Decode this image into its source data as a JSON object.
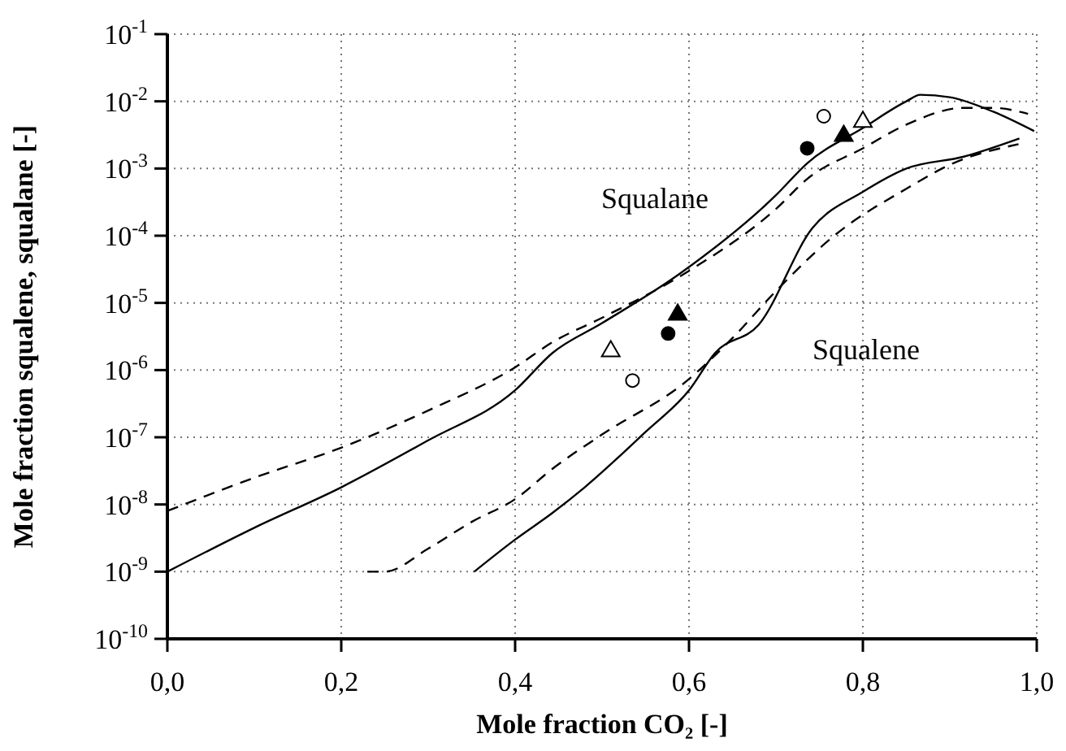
{
  "chart_data": {
    "type": "line",
    "xlabel": "Mole fraction CO₂ [-]",
    "ylabel": "Mole fraction squalene, squalane [-]",
    "log": "y",
    "grid": true,
    "xlim": [
      0,
      1
    ],
    "xticks": [
      {
        "value": 0,
        "label": "0,0"
      },
      {
        "value": 0.2,
        "label": "0,2"
      },
      {
        "value": 0.4,
        "label": "0,4"
      },
      {
        "value": 0.6,
        "label": "0,6"
      },
      {
        "value": 0.8,
        "label": "0,8"
      },
      {
        "value": 1,
        "label": "1,0"
      }
    ],
    "ylim": [
      1e-10,
      0.1
    ],
    "yticks": [
      {
        "value": 1e-10,
        "label": "10$^{-10}$"
      },
      {
        "value": 1e-09,
        "label": "10$^{-9}$"
      },
      {
        "value": 1e-08,
        "label": "10$^{-8}$"
      },
      {
        "value": 1e-07,
        "label": "10$^{-7}$"
      },
      {
        "value": 1e-06,
        "label": "10$^{-6}$"
      },
      {
        "value": 1e-05,
        "label": "10$^{-5}$"
      },
      {
        "value": 0.0001,
        "label": "10$^{-4}$"
      },
      {
        "value": 0.001,
        "label": "10$^{-3}$"
      },
      {
        "value": 0.01,
        "label": "10$^{-2}$"
      },
      {
        "value": 0.1,
        "label": "10$^{-1}$"
      }
    ],
    "annotations": [
      "Squalane",
      "Squalene"
    ],
    "series": [
      {
        "line_style": "solid",
        "color": "#000000",
        "x": [
          0,
          0.1,
          0.2,
          0.3,
          0.4,
          0.443,
          0.5,
          0.589,
          0.7,
          0.736,
          0.8,
          0.85,
          0.866,
          0.9,
          0.95,
          0.997
        ],
        "values": [
          1e-09,
          4.5e-09,
          1.8e-08,
          9e-08,
          5e-07,
          1.8e-06,
          5e-06,
          2.7e-05,
          0.0004,
          0.0012,
          0.004,
          0.01,
          0.0125,
          0.0115,
          0.007,
          0.0036
        ]
      },
      {
        "line_style": "dashed",
        "color": "#000000",
        "x": [
          0,
          0.1,
          0.2,
          0.3,
          0.4,
          0.443,
          0.5,
          0.6,
          0.7,
          0.736,
          0.8,
          0.85,
          0.916,
          0.95,
          0.99
        ],
        "values": [
          8e-09,
          2.5e-08,
          7e-08,
          2.5e-07,
          1.1e-06,
          2.6e-06,
          6e-06,
          3e-05,
          0.00025,
          0.0007,
          0.002,
          0.0045,
          0.008,
          0.008,
          0.0065
        ]
      },
      {
        "line_style": "solid",
        "color": "#000000",
        "x": [
          0.353,
          0.4,
          0.443,
          0.48,
          0.55,
          0.6,
          0.63,
          0.68,
          0.742,
          0.8,
          0.85,
          0.916,
          0.98
        ],
        "values": [
          1e-09,
          3e-09,
          7.5e-09,
          1.8e-08,
          1.2e-07,
          5e-07,
          1.8e-06,
          4.7e-06,
          0.00013,
          0.00045,
          0.001,
          0.0015,
          0.0028
        ]
      },
      {
        "line_style": "dashed",
        "color": "#000000",
        "x": [
          0.23,
          0.25,
          0.3,
          0.35,
          0.4,
          0.443,
          0.5,
          0.598,
          0.65,
          0.7,
          0.767,
          0.85,
          0.904,
          0.979
        ],
        "values": [
          1e-09,
          1e-09,
          2.2e-09,
          5.5e-09,
          1.2e-08,
          3.4e-08,
          1.1e-07,
          7e-07,
          3e-06,
          1.5e-05,
          0.0001,
          0.0005,
          0.0012,
          0.0023
        ]
      },
      {
        "type": "scatter",
        "marker": "circle",
        "color": "#000000",
        "x": [
          0.576,
          0.736
        ],
        "values": [
          3.5e-06,
          0.002
        ]
      },
      {
        "type": "scatter",
        "marker": "circle",
        "color": "#ffffff",
        "x": [
          0.535,
          0.755
        ],
        "values": [
          7e-07,
          0.006
        ]
      },
      {
        "type": "scatter",
        "marker": "triangle",
        "color": "#000000",
        "x": [
          0.587,
          0.778
        ],
        "values": [
          7e-06,
          0.0032
        ]
      },
      {
        "type": "scatter",
        "marker": "triangle",
        "color": "#ffffff",
        "x": [
          0.51,
          0.8
        ],
        "values": [
          2e-06,
          0.0052
        ]
      }
    ]
  }
}
